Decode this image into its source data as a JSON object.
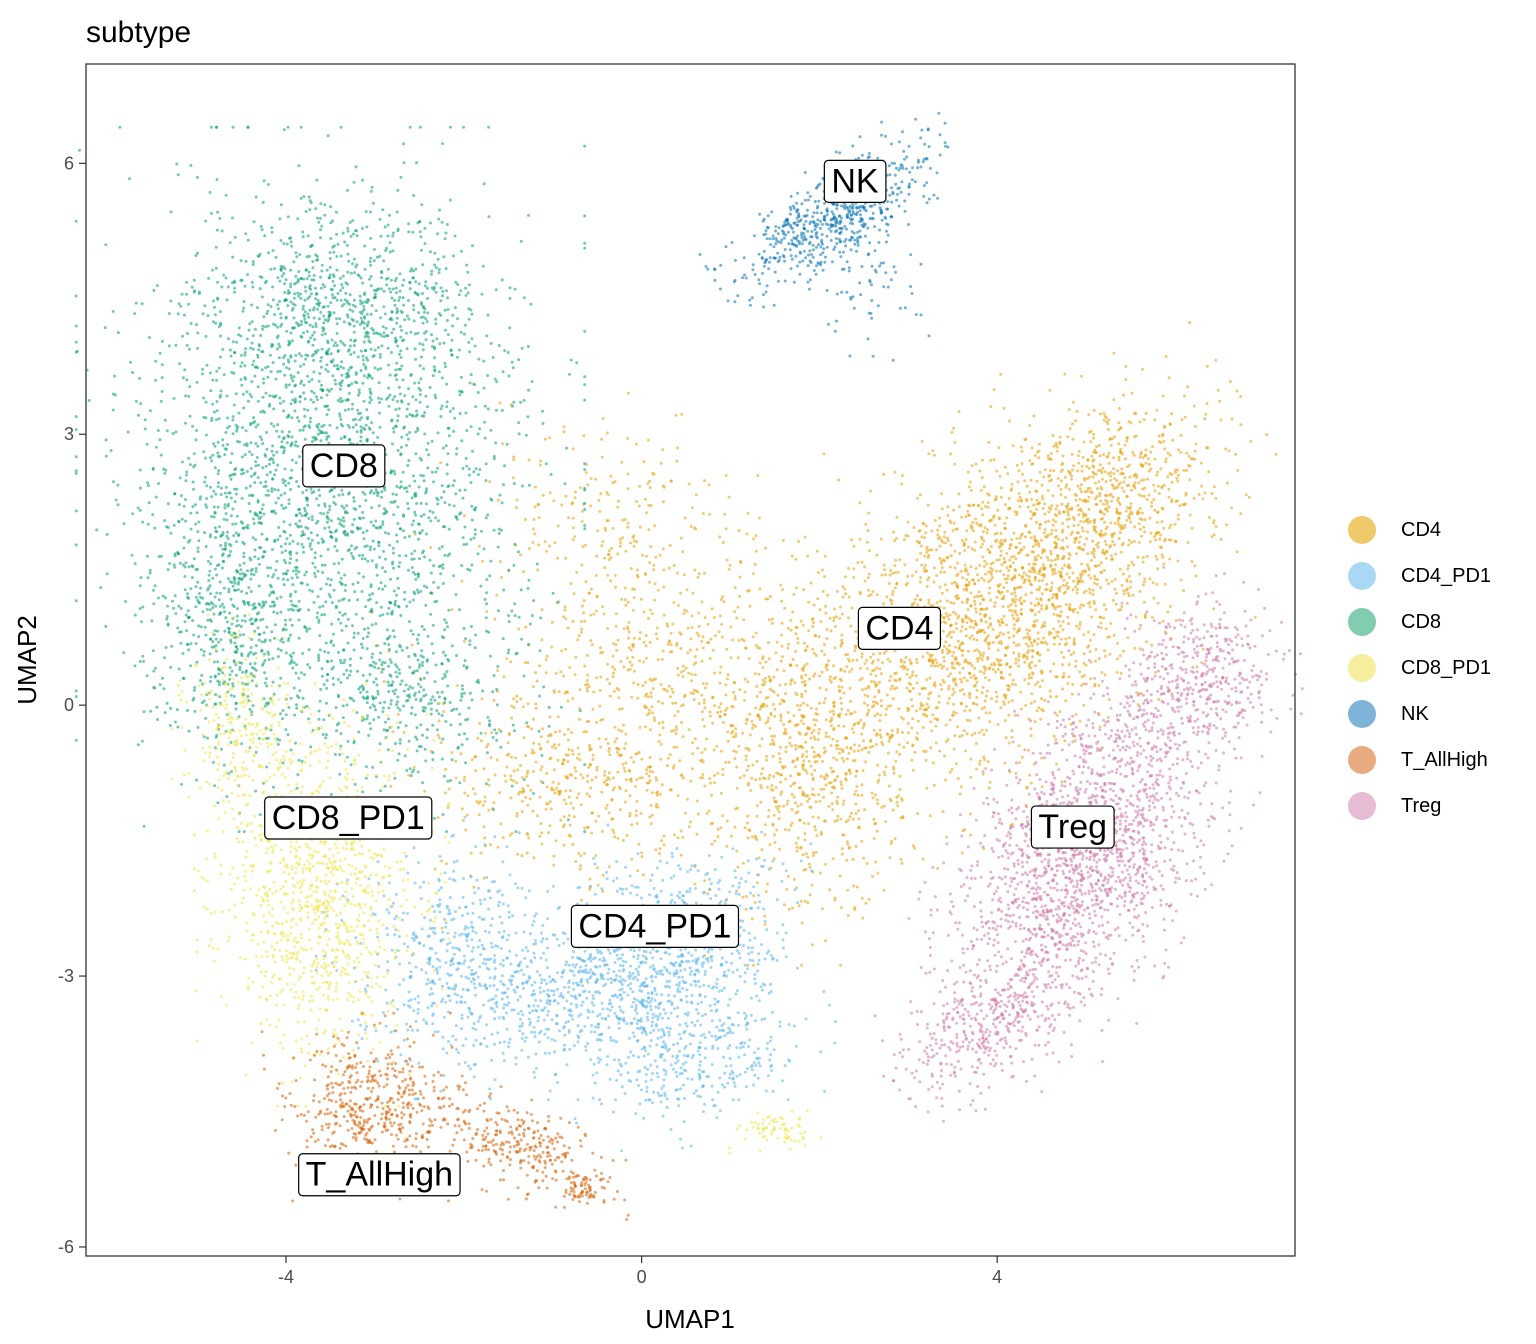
{
  "chart_data": {
    "type": "scatter",
    "title": "subtype",
    "xlabel": "UMAP1",
    "ylabel": "UMAP2",
    "xlim": [
      -6.25,
      7.35
    ],
    "ylim": [
      -6.1,
      7.1
    ],
    "x_ticks": [
      -4,
      0,
      4
    ],
    "x_tick_labels": [
      "-4",
      "0",
      "4"
    ],
    "y_ticks": [
      -6,
      -3,
      0,
      3,
      6
    ],
    "y_tick_labels": [
      "-6",
      "-3",
      "0",
      "3",
      "6"
    ],
    "grid": false,
    "legend_position": "right",
    "series": [
      {
        "name": "CD4",
        "color": "#E69F00",
        "legend_color": "#F0C96B",
        "label": "CD4",
        "label_at": [
          2.9,
          0.85
        ],
        "clusters": [
          {
            "cx": 3.9,
            "cy": 1.0,
            "sx": 1.1,
            "sy": 0.75,
            "angle": 40,
            "n": 1900
          },
          {
            "cx": 5.3,
            "cy": 2.3,
            "sx": 0.7,
            "sy": 0.5,
            "angle": 35,
            "n": 600
          },
          {
            "cx": 0.3,
            "cy": 0.1,
            "sx": 1.2,
            "sy": 0.9,
            "angle": 10,
            "n": 900
          },
          {
            "cx": 1.9,
            "cy": -0.8,
            "sx": 0.5,
            "sy": 0.8,
            "angle": 0,
            "n": 500
          },
          {
            "cx": -1.0,
            "cy": -1.0,
            "sx": 0.7,
            "sy": 0.4,
            "angle": 0,
            "n": 250
          },
          {
            "cx": -0.5,
            "cy": 2.2,
            "sx": 0.7,
            "sy": 0.5,
            "angle": -20,
            "n": 160
          }
        ]
      },
      {
        "name": "CD4_PD1",
        "color": "#56B4E9",
        "legend_color": "#A8D8F3",
        "label": "CD4_PD1",
        "label_at": [
          0.15,
          -2.45
        ],
        "clusters": [
          {
            "cx": -0.4,
            "cy": -3.2,
            "sx": 0.75,
            "sy": 0.45,
            "angle": 0,
            "n": 700
          },
          {
            "cx": -2.1,
            "cy": -2.8,
            "sx": 0.6,
            "sy": 0.6,
            "angle": 0,
            "n": 500
          },
          {
            "cx": 0.5,
            "cy": -2.6,
            "sx": 0.6,
            "sy": 0.5,
            "angle": 0,
            "n": 500
          },
          {
            "cx": 0.7,
            "cy": -4.0,
            "sx": 0.6,
            "sy": 0.3,
            "angle": 20,
            "n": 250
          }
        ]
      },
      {
        "name": "CD8",
        "color": "#009E73",
        "legend_color": "#82CDB0",
        "label": "CD8",
        "label_at": [
          -3.35,
          2.65
        ],
        "clusters": [
          {
            "cx": -3.5,
            "cy": 2.5,
            "sx": 1.1,
            "sy": 1.5,
            "angle": 0,
            "n": 2400
          },
          {
            "cx": -3.3,
            "cy": 4.4,
            "sx": 0.7,
            "sy": 0.5,
            "angle": 0,
            "n": 500
          },
          {
            "cx": -4.6,
            "cy": 1.0,
            "sx": 0.4,
            "sy": 0.8,
            "angle": 0,
            "n": 400
          },
          {
            "cx": -2.6,
            "cy": 0.1,
            "sx": 0.6,
            "sy": 0.5,
            "angle": 0,
            "n": 300
          }
        ]
      },
      {
        "name": "CD8_PD1",
        "color": "#F0E442",
        "legend_color": "#F5EE9D",
        "label": "CD8_PD1",
        "label_at": [
          -3.3,
          -1.25
        ],
        "clusters": [
          {
            "cx": -3.6,
            "cy": -2.1,
            "sx": 0.55,
            "sy": 0.9,
            "angle": 0,
            "n": 1000
          },
          {
            "cx": -4.5,
            "cy": -0.3,
            "sx": 0.3,
            "sy": 0.5,
            "angle": 0,
            "n": 250
          },
          {
            "cx": 1.5,
            "cy": -4.7,
            "sx": 0.2,
            "sy": 0.1,
            "angle": 0,
            "n": 70
          }
        ]
      },
      {
        "name": "NK",
        "color": "#0072B2",
        "legend_color": "#7FB4D8",
        "label": "NK",
        "label_at": [
          2.4,
          5.8
        ],
        "clusters": [
          {
            "cx": 2.2,
            "cy": 5.45,
            "sx": 0.6,
            "sy": 0.22,
            "angle": 33,
            "n": 650
          },
          {
            "cx": 2.6,
            "cy": 4.6,
            "sx": 0.3,
            "sy": 0.3,
            "angle": 0,
            "n": 60
          }
        ]
      },
      {
        "name": "T_AllHigh",
        "color": "#D55E00",
        "legend_color": "#E9AA7F",
        "label": "T_AllHigh",
        "label_at": [
          -2.95,
          -5.2
        ],
        "clusters": [
          {
            "cx": -3.1,
            "cy": -4.45,
            "sx": 0.45,
            "sy": 0.4,
            "angle": 0,
            "n": 450
          },
          {
            "cx": -1.4,
            "cy": -4.9,
            "sx": 0.55,
            "sy": 0.22,
            "angle": -20,
            "n": 300
          },
          {
            "cx": -0.65,
            "cy": -5.35,
            "sx": 0.12,
            "sy": 0.1,
            "angle": 0,
            "n": 60
          }
        ]
      },
      {
        "name": "Treg",
        "color": "#CC79A7",
        "legend_color": "#E5BCD3",
        "label": "Treg",
        "label_at": [
          4.85,
          -1.35
        ],
        "clusters": [
          {
            "cx": 5.0,
            "cy": -1.6,
            "sx": 1.0,
            "sy": 0.55,
            "angle": 62,
            "n": 1800
          },
          {
            "cx": 6.3,
            "cy": 0.3,
            "sx": 0.45,
            "sy": 0.4,
            "angle": 60,
            "n": 400
          },
          {
            "cx": 3.9,
            "cy": -3.5,
            "sx": 0.6,
            "sy": 0.3,
            "angle": 35,
            "n": 400
          }
        ]
      }
    ]
  }
}
